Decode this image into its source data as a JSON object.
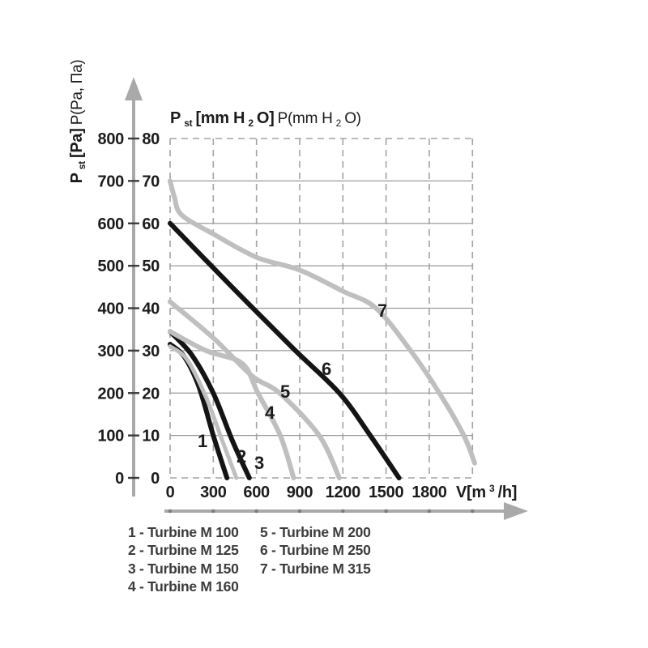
{
  "title": {
    "bold_p": "P",
    "bold_sub": "st",
    "bold_rest": " [mm H",
    "bold_sub2": "2",
    "bold_end": "O]",
    "reg_start": " P(mm H",
    "reg_sub": "2",
    "reg_end": "O)"
  },
  "ylabel": {
    "bold_p": "P",
    "bold_sub": "st",
    "bold_rest": " [Pa]",
    "reg": " P(Pa, Па)"
  },
  "xunit": {
    "start": "V[m",
    "sup": "3",
    "end": "/h]"
  },
  "legend": {
    "items": [
      {
        "text": "1 - Turbine M 100"
      },
      {
        "text": "2 - Turbine M 125"
      },
      {
        "text": "3 - Turbine M 150"
      },
      {
        "text": "4 - Turbine M 160"
      },
      {
        "text": "5 - Turbine M 200"
      },
      {
        "text": "6 - Turbine M 250"
      },
      {
        "text": "7 - Turbine M 315"
      }
    ]
  },
  "chart_data": {
    "type": "line",
    "xlabel": "V[m3/h]",
    "ylabel_left": "Pst [Pa] P(Pa, Pa)",
    "ylabel_right": "Pst [mm H2O] P(mm H2O)",
    "x_ticks": [
      0,
      300,
      600,
      900,
      1200,
      1500,
      1800
    ],
    "x_range": [
      0,
      2100
    ],
    "y_ticks_pa": [
      0,
      100,
      200,
      300,
      400,
      500,
      600,
      700,
      800
    ],
    "y_ticks_mmh2o": [
      0,
      10,
      20,
      30,
      40,
      50,
      60,
      70,
      80
    ],
    "y_range_pa": [
      0,
      800
    ],
    "grid": "on",
    "legend_position": "bottom",
    "colors": {
      "black_curve": "#141414",
      "gray_curve": "#bfbfbf",
      "axis_arrow": "#a9a9a9"
    },
    "series": [
      {
        "label": "1",
        "name": "Turbine M 100",
        "color": "#141414",
        "points": [
          [
            0,
            315
          ],
          [
            100,
            285
          ],
          [
            200,
            215
          ],
          [
            300,
            100
          ],
          [
            395,
            0
          ]
        ]
      },
      {
        "label": "2",
        "name": "Turbine M 125",
        "color": "#bfbfbf",
        "points": [
          [
            0,
            310
          ],
          [
            120,
            278
          ],
          [
            250,
            190
          ],
          [
            360,
            90
          ],
          [
            460,
            0
          ]
        ]
      },
      {
        "label": "3",
        "name": "Turbine M 150",
        "color": "#141414",
        "points": [
          [
            0,
            345
          ],
          [
            150,
            290
          ],
          [
            300,
            200
          ],
          [
            430,
            90
          ],
          [
            550,
            0
          ]
        ]
      },
      {
        "label": "4",
        "name": "Turbine M 160",
        "color": "#bfbfbf",
        "points": [
          [
            0,
            345
          ],
          [
            250,
            300
          ],
          [
            500,
            270
          ],
          [
            610,
            200
          ],
          [
            765,
            100
          ],
          [
            858,
            0
          ]
        ]
      },
      {
        "label": "5",
        "name": "Turbine M 200",
        "color": "#bfbfbf",
        "points": [
          [
            0,
            415
          ],
          [
            300,
            330
          ],
          [
            570,
            240
          ],
          [
            760,
            200
          ],
          [
            1035,
            100
          ],
          [
            1175,
            0
          ]
        ]
      },
      {
        "label": "6",
        "name": "Turbine M 250",
        "color": "#141414",
        "points": [
          [
            0,
            600
          ],
          [
            430,
            450
          ],
          [
            855,
            305
          ],
          [
            1175,
            200
          ],
          [
            1390,
            100
          ],
          [
            1590,
            0
          ]
        ]
      },
      {
        "label": "7",
        "name": "Turbine M 315",
        "color": "#bfbfbf",
        "points": [
          [
            0,
            700
          ],
          [
            30,
            662
          ],
          [
            80,
            620
          ],
          [
            300,
            575
          ],
          [
            600,
            520
          ],
          [
            900,
            490
          ],
          [
            1200,
            440
          ],
          [
            1430,
            400
          ],
          [
            1670,
            300
          ],
          [
            1870,
            200
          ],
          [
            2040,
            100
          ],
          [
            2115,
            35
          ]
        ]
      }
    ]
  }
}
